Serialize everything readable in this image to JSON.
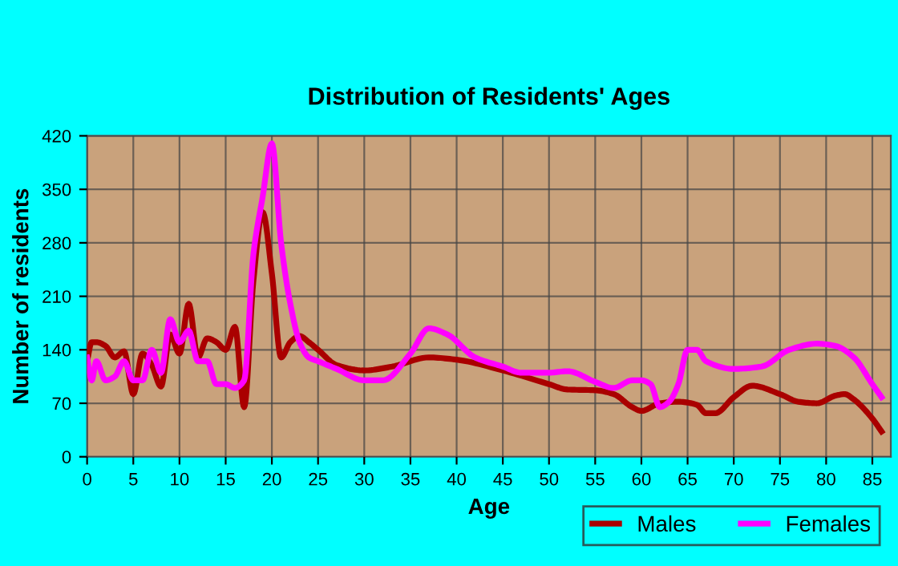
{
  "chart_data": {
    "type": "line",
    "title": "Distribution of Residents' Ages",
    "xlabel": "Age",
    "ylabel": "Number of residents",
    "xlim": [
      0,
      87
    ],
    "xticks": [
      0,
      5,
      10,
      15,
      20,
      25,
      30,
      35,
      40,
      45,
      50,
      55,
      60,
      65,
      70,
      75,
      80,
      85
    ],
    "ylim": [
      0,
      420
    ],
    "yticks": [
      0,
      70,
      140,
      210,
      280,
      350,
      420
    ],
    "grid": true,
    "legend": "bottom right",
    "marker": "none",
    "line_style": "solid",
    "series": [
      {
        "name": "Males",
        "color": "#aa0000",
        "x": [
          0,
          0.5,
          1,
          2,
          3,
          4,
          5,
          6,
          7,
          8,
          9,
          10,
          11,
          12,
          13,
          14,
          15,
          16,
          17,
          18,
          19,
          20,
          21,
          22,
          23,
          24,
          25,
          27,
          30,
          33,
          37,
          40,
          45,
          50,
          52,
          55,
          57,
          59,
          60,
          62,
          64,
          66,
          67,
          68,
          70,
          72,
          75,
          77,
          79,
          81,
          82,
          83,
          85,
          86
        ],
        "values": [
          125,
          150,
          150,
          145,
          130,
          138,
          82,
          135,
          120,
          92,
          160,
          135,
          200,
          130,
          155,
          150,
          140,
          170,
          65,
          230,
          320,
          240,
          130,
          150,
          158,
          150,
          140,
          120,
          113,
          118,
          130,
          127,
          113,
          95,
          88,
          87,
          82,
          65,
          60,
          70,
          72,
          68,
          57,
          57,
          78,
          93,
          82,
          72,
          70,
          80,
          82,
          75,
          50,
          33
        ]
      },
      {
        "name": "Females",
        "color": "#ff00ff",
        "x": [
          0,
          0.5,
          1,
          2,
          3,
          4,
          5,
          6,
          7,
          8,
          9,
          10,
          11,
          12,
          13,
          14,
          15,
          16,
          17,
          18,
          19,
          20,
          21,
          22,
          23,
          24,
          25,
          27,
          30,
          32,
          35,
          37,
          39,
          42,
          45,
          47,
          50,
          52,
          55,
          57,
          59,
          60,
          61,
          62,
          63,
          64,
          65,
          66,
          67,
          70,
          73,
          76,
          79,
          81,
          83,
          85,
          86
        ],
        "values": [
          130,
          100,
          125,
          100,
          105,
          125,
          100,
          100,
          140,
          110,
          180,
          150,
          165,
          125,
          125,
          95,
          95,
          90,
          100,
          265,
          340,
          410,
          280,
          200,
          150,
          130,
          125,
          115,
          100,
          100,
          135,
          168,
          160,
          130,
          118,
          110,
          110,
          112,
          98,
          90,
          100,
          100,
          95,
          65,
          72,
          95,
          140,
          140,
          125,
          115,
          118,
          140,
          148,
          145,
          130,
          95,
          78
        ]
      }
    ]
  }
}
